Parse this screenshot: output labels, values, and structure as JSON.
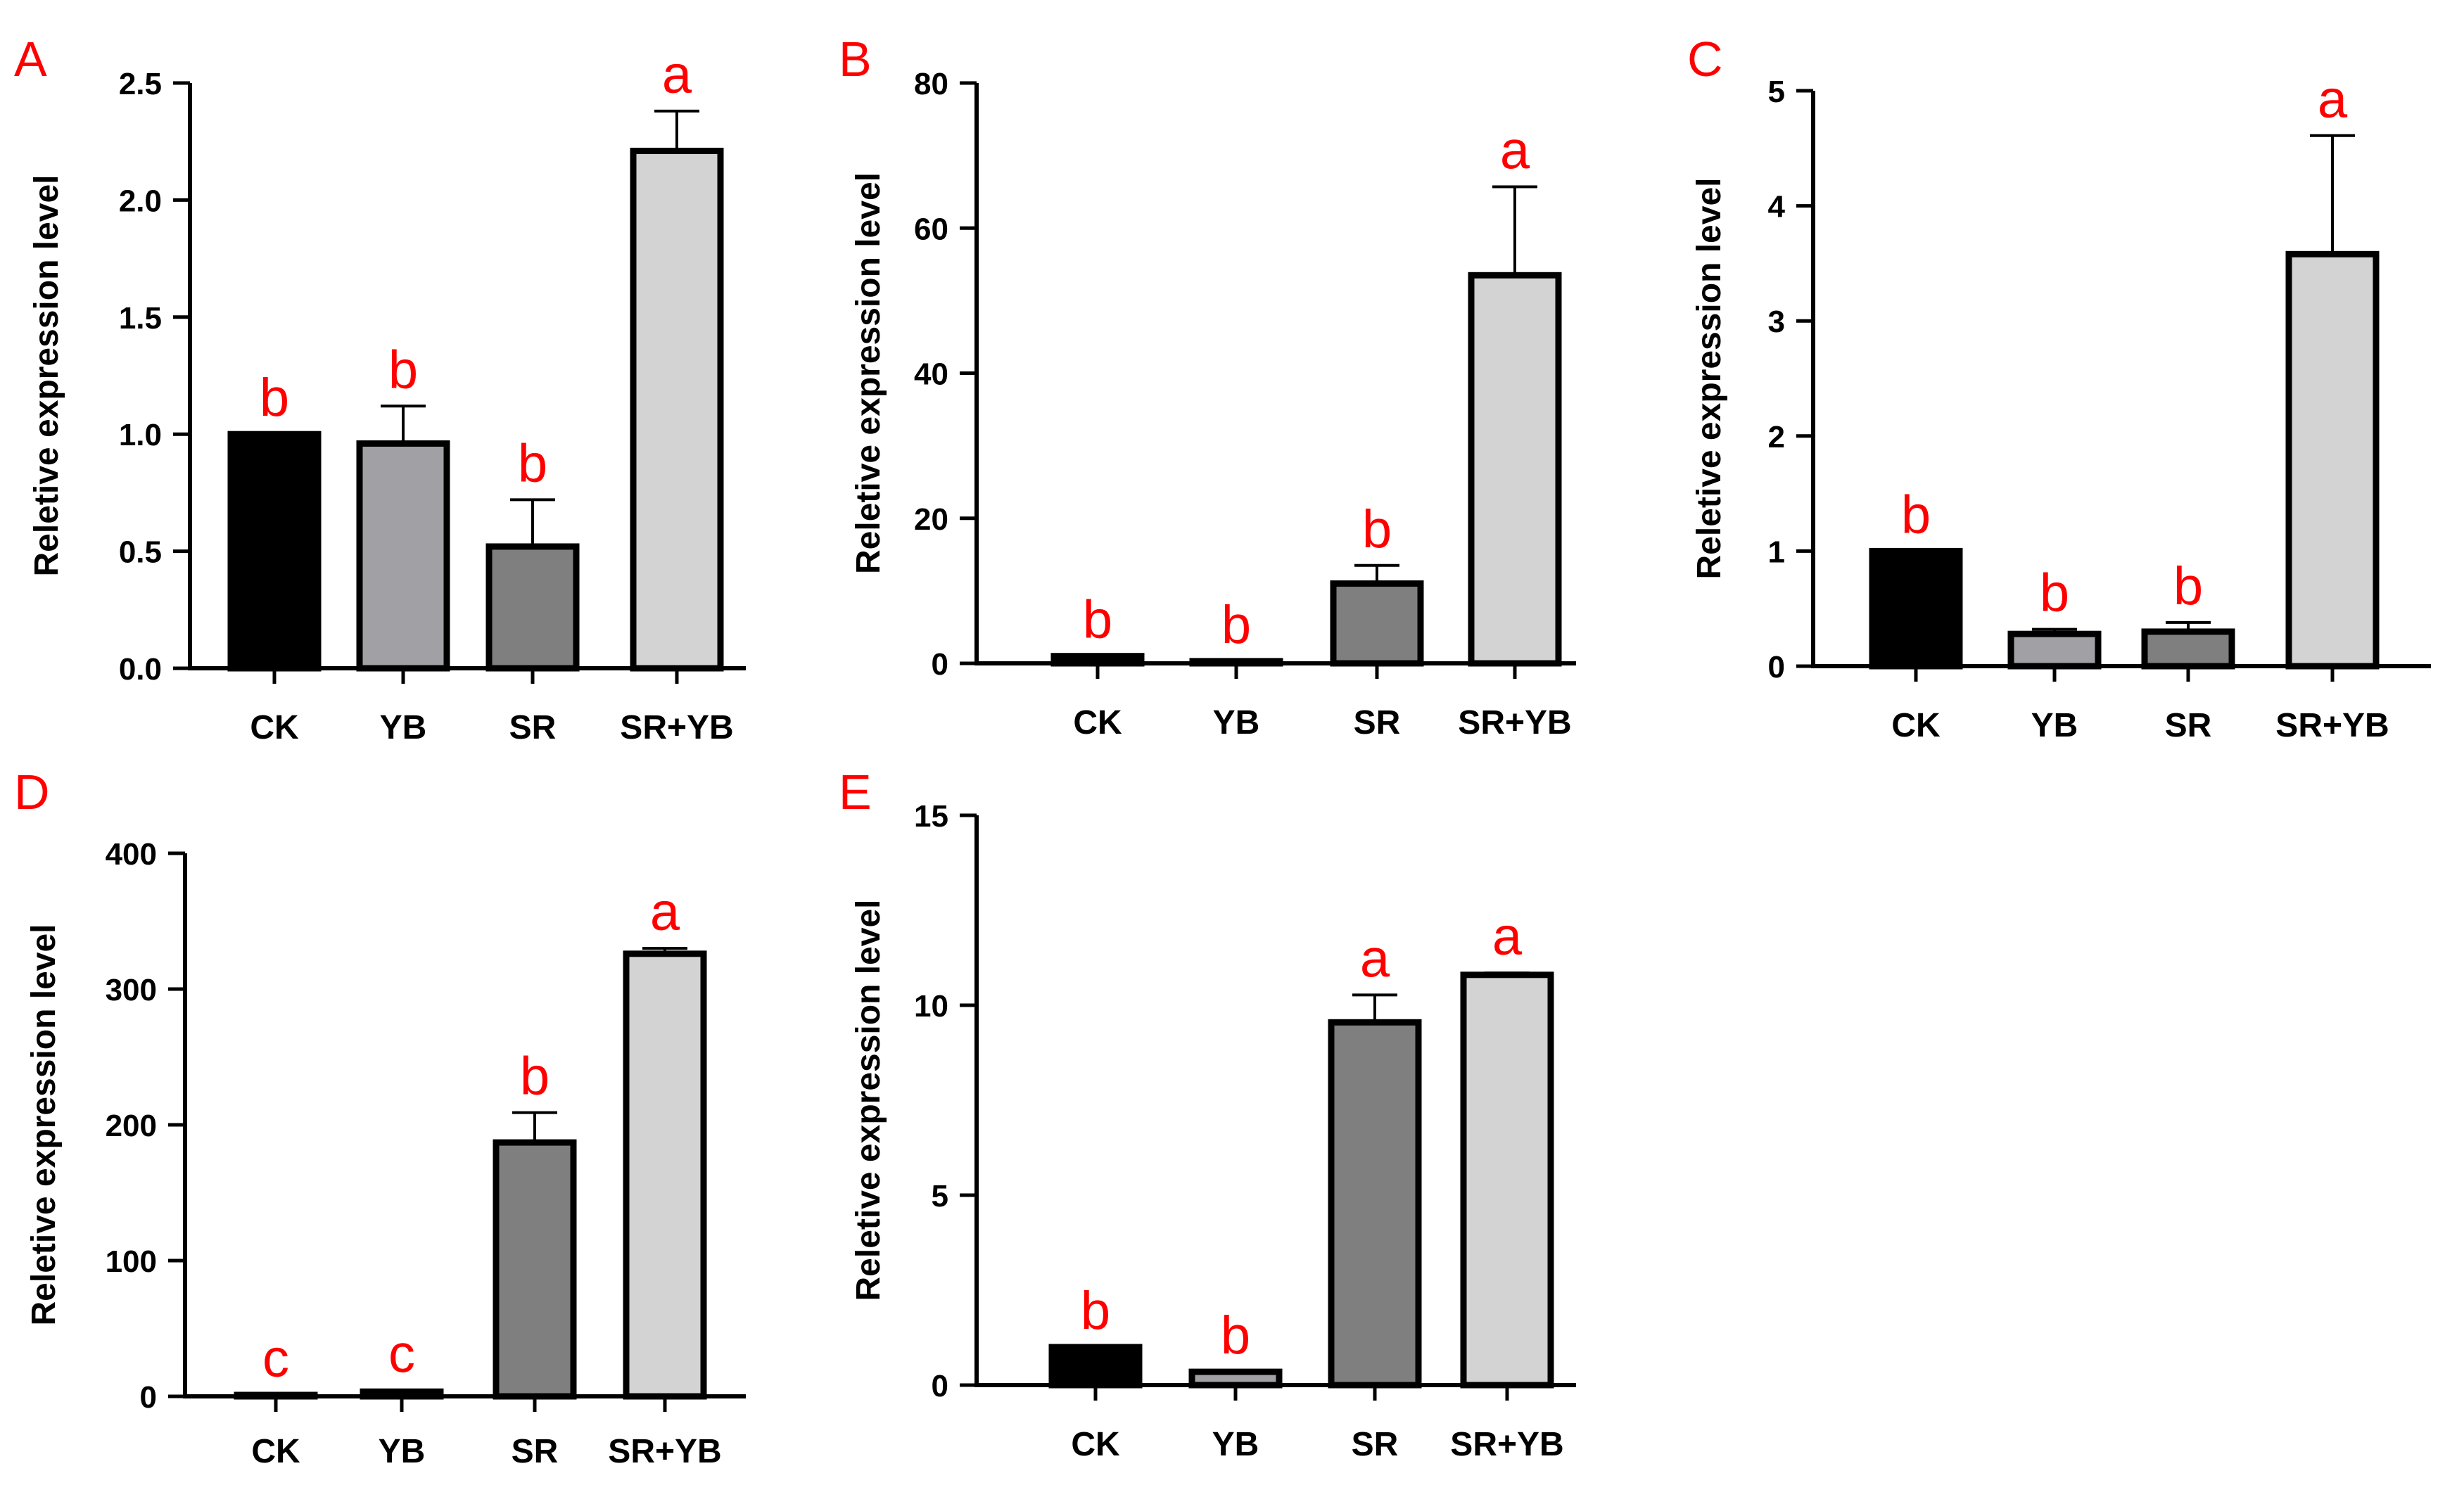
{
  "figure": {
    "panels": [
      "A",
      "B",
      "C",
      "D",
      "E"
    ]
  },
  "chart_data": [
    {
      "panel": "A",
      "type": "bar",
      "ylabel": "Reletive expression level",
      "categories": [
        "CK",
        "YB",
        "SR",
        "SR+YB"
      ],
      "values": [
        1.0,
        0.96,
        0.52,
        2.21
      ],
      "errors": [
        0.0,
        0.16,
        0.2,
        0.17
      ],
      "significance": [
        "b",
        "b",
        "b",
        "a"
      ],
      "yticks": [
        "0.0",
        "0.5",
        "1.0",
        "1.5",
        "2.0",
        "2.5"
      ],
      "ylim": [
        0,
        2.5
      ],
      "colors": [
        "#000000",
        "#a0a0a5",
        "#7f7f7f",
        "#d3d3d3"
      ]
    },
    {
      "panel": "B",
      "type": "bar",
      "ylabel": "Reletive expression level",
      "categories": [
        "CK",
        "YB",
        "SR",
        "SR+YB"
      ],
      "values": [
        1.0,
        0.3,
        11.0,
        53.5
      ],
      "errors": [
        0.0,
        0.0,
        2.5,
        12.2
      ],
      "significance": [
        "b",
        "b",
        "b",
        "a"
      ],
      "yticks": [
        "0",
        "20",
        "40",
        "60",
        "80"
      ],
      "ylim": [
        0,
        80
      ],
      "colors": [
        "#000000",
        "#a0a0a5",
        "#7f7f7f",
        "#d3d3d3"
      ]
    },
    {
      "panel": "C",
      "type": "bar",
      "ylabel": "Reletive expression level",
      "categories": [
        "CK",
        "YB",
        "SR",
        "SR+YB"
      ],
      "values": [
        1.0,
        0.28,
        0.3,
        3.58
      ],
      "errors": [
        0.0,
        0.04,
        0.08,
        1.03
      ],
      "significance": [
        "b",
        "b",
        "b",
        "a"
      ],
      "yticks": [
        "0",
        "1",
        "2",
        "3",
        "4",
        "5"
      ],
      "ylim": [
        0,
        5
      ],
      "colors": [
        "#000000",
        "#a0a0a5",
        "#7f7f7f",
        "#d3d3d3"
      ]
    },
    {
      "panel": "D",
      "type": "bar",
      "ylabel": "Reletive expression level",
      "categories": [
        "CK",
        "YB",
        "SR",
        "SR+YB"
      ],
      "values": [
        1.0,
        3.5,
        187,
        326
      ],
      "errors": [
        0.0,
        1.0,
        22,
        4
      ],
      "significance": [
        "c",
        "c",
        "b",
        "a"
      ],
      "yticks": [
        "0",
        "100",
        "200",
        "300",
        "400"
      ],
      "ylim": [
        0,
        400
      ],
      "colors": [
        "#000000",
        "#a0a0a5",
        "#7f7f7f",
        "#d3d3d3"
      ]
    },
    {
      "panel": "E",
      "type": "bar",
      "ylabel": "Reletive expression level",
      "categories": [
        "CK",
        "YB",
        "SR",
        "SR+YB"
      ],
      "values": [
        1.0,
        0.35,
        9.55,
        10.8
      ],
      "errors": [
        0.0,
        0.0,
        0.72,
        0.05
      ],
      "significance": [
        "b",
        "b",
        "a",
        "a"
      ],
      "yticks": [
        "0",
        "5",
        "10",
        "15"
      ],
      "ylim": [
        0,
        15
      ],
      "colors": [
        "#000000",
        "#a0a0a5",
        "#7f7f7f",
        "#d3d3d3"
      ]
    }
  ]
}
